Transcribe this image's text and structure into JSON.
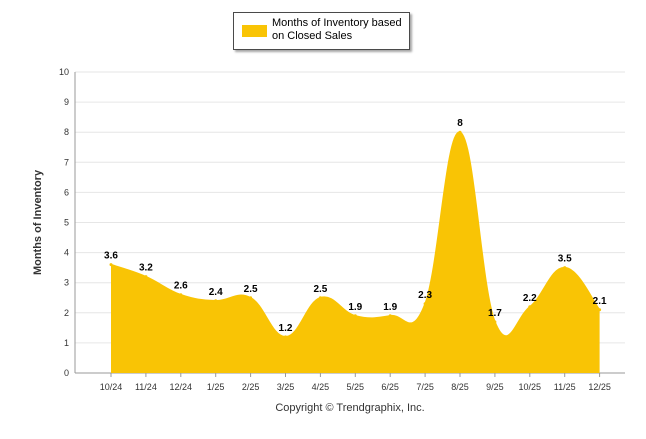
{
  "chart_data": {
    "type": "area",
    "categories": [
      "10/24",
      "11/24",
      "12/24",
      "1/25",
      "2/25",
      "3/25",
      "4/25",
      "5/25",
      "6/25",
      "7/25",
      "8/25",
      "9/25",
      "10/25",
      "11/25",
      "12/25"
    ],
    "series": [
      {
        "name": "Months of Inventory based on Closed Sales",
        "values": [
          3.6,
          3.2,
          2.6,
          2.4,
          2.5,
          1.2,
          2.5,
          1.9,
          1.9,
          2.3,
          8,
          1.7,
          2.2,
          3.5,
          2.1
        ],
        "labels": [
          "3.6",
          "3.2",
          "2.6",
          "2.4",
          "2.5",
          "1.2",
          "2.5",
          "1.9",
          "1.9",
          "2.3",
          "8",
          "1.7",
          "2.2",
          "3.5",
          "2.1"
        ],
        "color": "#F9C405"
      }
    ],
    "ylabel": "Months of Inventory",
    "ylim": [
      0,
      10
    ],
    "yticks": [
      0,
      1,
      2,
      3,
      4,
      5,
      6,
      7,
      8,
      9,
      10
    ],
    "grid": true,
    "legend_position": "top-center"
  },
  "legend": {
    "label": "Months of Inventory based on Closed Sales"
  },
  "footer": {
    "copyright": "Copyright © Trendgraphix, Inc."
  },
  "colors": {
    "series": "#F9C405",
    "grid": "#e6e6e6",
    "axis": "#999999"
  }
}
